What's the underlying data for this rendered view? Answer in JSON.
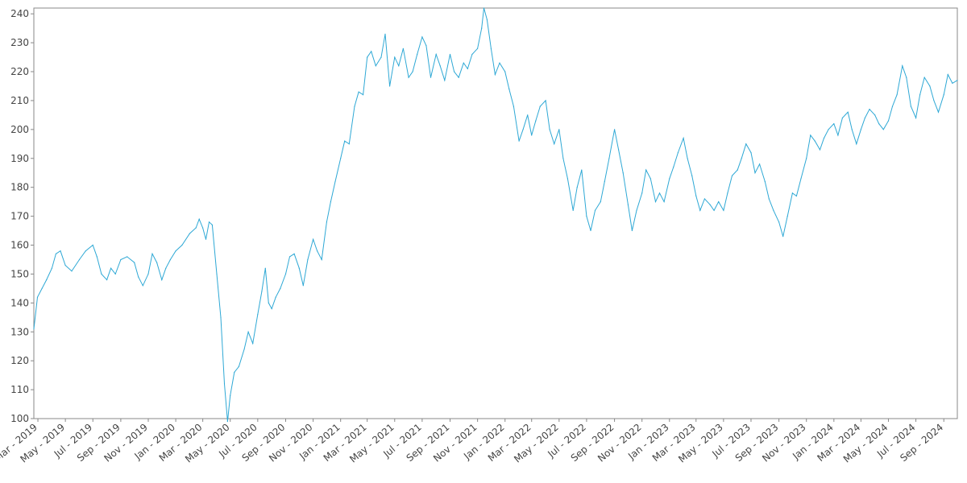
{
  "chart_data": {
    "type": "line",
    "title": "",
    "xlabel": "",
    "ylabel": "",
    "grid": false,
    "legend": "none",
    "colors": {
      "line": "#2ea8d5",
      "axis": "#888888",
      "text": "#444444"
    },
    "x_range": [
      "2019-02-20",
      "2024-10-01"
    ],
    "ylim": [
      100,
      242
    ],
    "y_ticks": [
      100,
      110,
      120,
      130,
      140,
      150,
      160,
      170,
      180,
      190,
      200,
      210,
      220,
      230,
      240
    ],
    "x_ticks": [
      {
        "date": "2019-03-01",
        "label": "Mar - 2019"
      },
      {
        "date": "2019-05-01",
        "label": "May - 2019"
      },
      {
        "date": "2019-07-01",
        "label": "Jul - 2019"
      },
      {
        "date": "2019-09-01",
        "label": "Sep - 2019"
      },
      {
        "date": "2019-11-01",
        "label": "Nov - 2019"
      },
      {
        "date": "2020-01-01",
        "label": "Jan - 2020"
      },
      {
        "date": "2020-03-01",
        "label": "Mar - 2020"
      },
      {
        "date": "2020-05-01",
        "label": "May - 2020"
      },
      {
        "date": "2020-07-01",
        "label": "Jul - 2020"
      },
      {
        "date": "2020-09-01",
        "label": "Sep - 2020"
      },
      {
        "date": "2020-11-01",
        "label": "Nov - 2020"
      },
      {
        "date": "2021-01-01",
        "label": "Jan - 2021"
      },
      {
        "date": "2021-03-01",
        "label": "Mar - 2021"
      },
      {
        "date": "2021-05-01",
        "label": "May - 2021"
      },
      {
        "date": "2021-07-01",
        "label": "Jul - 2021"
      },
      {
        "date": "2021-09-01",
        "label": "Sep - 2021"
      },
      {
        "date": "2021-11-01",
        "label": "Nov - 2021"
      },
      {
        "date": "2022-01-01",
        "label": "Jan - 2022"
      },
      {
        "date": "2022-03-01",
        "label": "Mar - 2022"
      },
      {
        "date": "2022-05-01",
        "label": "May - 2022"
      },
      {
        "date": "2022-07-01",
        "label": "Jul - 2022"
      },
      {
        "date": "2022-09-01",
        "label": "Sep - 2022"
      },
      {
        "date": "2022-11-01",
        "label": "Nov - 2022"
      },
      {
        "date": "2023-01-01",
        "label": "Jan - 2023"
      },
      {
        "date": "2023-03-01",
        "label": "Mar - 2023"
      },
      {
        "date": "2023-05-01",
        "label": "May - 2023"
      },
      {
        "date": "2023-07-01",
        "label": "Jul - 2023"
      },
      {
        "date": "2023-09-01",
        "label": "Sep - 2023"
      },
      {
        "date": "2023-11-01",
        "label": "Nov - 2023"
      },
      {
        "date": "2024-01-01",
        "label": "Jan - 2024"
      },
      {
        "date": "2024-03-01",
        "label": "Mar - 2024"
      },
      {
        "date": "2024-05-01",
        "label": "May - 2024"
      },
      {
        "date": "2024-07-01",
        "label": "Jul - 2024"
      },
      {
        "date": "2024-09-01",
        "label": "Sep - 2024"
      }
    ],
    "series": [
      {
        "points": [
          [
            "2019-02-20",
            131
          ],
          [
            "2019-02-28",
            142
          ],
          [
            "2019-03-10",
            145
          ],
          [
            "2019-03-20",
            148
          ],
          [
            "2019-04-01",
            152
          ],
          [
            "2019-04-10",
            157
          ],
          [
            "2019-04-20",
            158
          ],
          [
            "2019-05-01",
            153
          ],
          [
            "2019-05-15",
            151
          ],
          [
            "2019-06-01",
            155
          ],
          [
            "2019-06-15",
            158
          ],
          [
            "2019-07-01",
            160
          ],
          [
            "2019-07-10",
            156
          ],
          [
            "2019-07-20",
            150
          ],
          [
            "2019-08-01",
            148
          ],
          [
            "2019-08-10",
            152
          ],
          [
            "2019-08-20",
            150
          ],
          [
            "2019-09-01",
            155
          ],
          [
            "2019-09-15",
            156
          ],
          [
            "2019-10-01",
            154
          ],
          [
            "2019-10-10",
            149
          ],
          [
            "2019-10-20",
            146
          ],
          [
            "2019-11-01",
            150
          ],
          [
            "2019-11-10",
            157
          ],
          [
            "2019-11-20",
            154
          ],
          [
            "2019-12-01",
            148
          ],
          [
            "2019-12-10",
            152
          ],
          [
            "2019-12-20",
            155
          ],
          [
            "2020-01-01",
            158
          ],
          [
            "2020-01-15",
            160
          ],
          [
            "2020-02-01",
            164
          ],
          [
            "2020-02-15",
            166
          ],
          [
            "2020-02-22",
            169
          ],
          [
            "2020-03-01",
            166
          ],
          [
            "2020-03-08",
            162
          ],
          [
            "2020-03-15",
            168
          ],
          [
            "2020-03-22",
            167
          ],
          [
            "2020-04-01",
            150
          ],
          [
            "2020-04-10",
            135
          ],
          [
            "2020-04-18",
            112
          ],
          [
            "2020-04-25",
            99
          ],
          [
            "2020-05-01",
            108
          ],
          [
            "2020-05-10",
            116
          ],
          [
            "2020-05-20",
            118
          ],
          [
            "2020-06-01",
            124
          ],
          [
            "2020-06-10",
            130
          ],
          [
            "2020-06-20",
            126
          ],
          [
            "2020-07-01",
            136
          ],
          [
            "2020-07-10",
            144
          ],
          [
            "2020-07-18",
            152
          ],
          [
            "2020-07-25",
            140
          ],
          [
            "2020-08-01",
            138
          ],
          [
            "2020-08-10",
            142
          ],
          [
            "2020-08-20",
            145
          ],
          [
            "2020-09-01",
            150
          ],
          [
            "2020-09-10",
            156
          ],
          [
            "2020-09-20",
            157
          ],
          [
            "2020-10-01",
            152
          ],
          [
            "2020-10-10",
            146
          ],
          [
            "2020-10-20",
            155
          ],
          [
            "2020-11-01",
            162
          ],
          [
            "2020-11-10",
            158
          ],
          [
            "2020-11-20",
            155
          ],
          [
            "2020-12-01",
            168
          ],
          [
            "2020-12-10",
            175
          ],
          [
            "2020-12-20",
            182
          ],
          [
            "2021-01-01",
            190
          ],
          [
            "2021-01-10",
            196
          ],
          [
            "2021-01-20",
            195
          ],
          [
            "2021-02-01",
            208
          ],
          [
            "2021-02-10",
            213
          ],
          [
            "2021-02-20",
            212
          ],
          [
            "2021-03-01",
            225
          ],
          [
            "2021-03-10",
            227
          ],
          [
            "2021-03-20",
            222
          ],
          [
            "2021-04-01",
            225
          ],
          [
            "2021-04-10",
            233
          ],
          [
            "2021-04-20",
            215
          ],
          [
            "2021-05-01",
            225
          ],
          [
            "2021-05-10",
            222
          ],
          [
            "2021-05-20",
            228
          ],
          [
            "2021-06-01",
            218
          ],
          [
            "2021-06-10",
            220
          ],
          [
            "2021-06-20",
            226
          ],
          [
            "2021-07-01",
            232
          ],
          [
            "2021-07-10",
            229
          ],
          [
            "2021-07-20",
            218
          ],
          [
            "2021-08-01",
            226
          ],
          [
            "2021-08-10",
            222
          ],
          [
            "2021-08-20",
            217
          ],
          [
            "2021-09-01",
            226
          ],
          [
            "2021-09-10",
            220
          ],
          [
            "2021-09-20",
            218
          ],
          [
            "2021-10-01",
            223
          ],
          [
            "2021-10-10",
            221
          ],
          [
            "2021-10-20",
            226
          ],
          [
            "2021-11-01",
            228
          ],
          [
            "2021-11-10",
            235
          ],
          [
            "2021-11-15",
            242
          ],
          [
            "2021-11-22",
            238
          ],
          [
            "2021-12-01",
            228
          ],
          [
            "2021-12-10",
            219
          ],
          [
            "2021-12-20",
            223
          ],
          [
            "2022-01-01",
            220
          ],
          [
            "2022-01-10",
            214
          ],
          [
            "2022-01-20",
            208
          ],
          [
            "2022-02-01",
            196
          ],
          [
            "2022-02-10",
            200
          ],
          [
            "2022-02-20",
            205
          ],
          [
            "2022-03-01",
            198
          ],
          [
            "2022-03-10",
            203
          ],
          [
            "2022-03-20",
            208
          ],
          [
            "2022-04-01",
            210
          ],
          [
            "2022-04-10",
            200
          ],
          [
            "2022-04-20",
            195
          ],
          [
            "2022-05-01",
            200
          ],
          [
            "2022-05-10",
            190
          ],
          [
            "2022-05-20",
            183
          ],
          [
            "2022-06-01",
            172
          ],
          [
            "2022-06-10",
            180
          ],
          [
            "2022-06-20",
            186
          ],
          [
            "2022-07-01",
            170
          ],
          [
            "2022-07-10",
            165
          ],
          [
            "2022-07-20",
            172
          ],
          [
            "2022-08-01",
            175
          ],
          [
            "2022-08-10",
            182
          ],
          [
            "2022-08-20",
            190
          ],
          [
            "2022-09-01",
            200
          ],
          [
            "2022-09-10",
            193
          ],
          [
            "2022-09-20",
            185
          ],
          [
            "2022-10-01",
            174
          ],
          [
            "2022-10-10",
            165
          ],
          [
            "2022-10-20",
            172
          ],
          [
            "2022-11-01",
            178
          ],
          [
            "2022-11-10",
            186
          ],
          [
            "2022-11-20",
            183
          ],
          [
            "2022-12-01",
            175
          ],
          [
            "2022-12-10",
            178
          ],
          [
            "2022-12-20",
            175
          ],
          [
            "2023-01-01",
            183
          ],
          [
            "2023-01-10",
            187
          ],
          [
            "2023-01-20",
            192
          ],
          [
            "2023-02-01",
            197
          ],
          [
            "2023-02-10",
            190
          ],
          [
            "2023-02-20",
            184
          ],
          [
            "2023-03-01",
            177
          ],
          [
            "2023-03-10",
            172
          ],
          [
            "2023-03-20",
            176
          ],
          [
            "2023-04-01",
            174
          ],
          [
            "2023-04-10",
            172
          ],
          [
            "2023-04-20",
            175
          ],
          [
            "2023-05-01",
            172
          ],
          [
            "2023-05-10",
            178
          ],
          [
            "2023-05-20",
            184
          ],
          [
            "2023-06-01",
            186
          ],
          [
            "2023-06-10",
            190
          ],
          [
            "2023-06-20",
            195
          ],
          [
            "2023-07-01",
            192
          ],
          [
            "2023-07-10",
            185
          ],
          [
            "2023-07-20",
            188
          ],
          [
            "2023-08-01",
            182
          ],
          [
            "2023-08-10",
            176
          ],
          [
            "2023-08-20",
            172
          ],
          [
            "2023-09-01",
            168
          ],
          [
            "2023-09-10",
            163
          ],
          [
            "2023-09-20",
            170
          ],
          [
            "2023-10-01",
            178
          ],
          [
            "2023-10-10",
            177
          ],
          [
            "2023-10-20",
            183
          ],
          [
            "2023-11-01",
            190
          ],
          [
            "2023-11-10",
            198
          ],
          [
            "2023-11-20",
            196
          ],
          [
            "2023-12-01",
            193
          ],
          [
            "2023-12-10",
            197
          ],
          [
            "2023-12-20",
            200
          ],
          [
            "2024-01-01",
            202
          ],
          [
            "2024-01-10",
            198
          ],
          [
            "2024-01-20",
            204
          ],
          [
            "2024-02-01",
            206
          ],
          [
            "2024-02-10",
            200
          ],
          [
            "2024-02-20",
            195
          ],
          [
            "2024-03-01",
            200
          ],
          [
            "2024-03-10",
            204
          ],
          [
            "2024-03-20",
            207
          ],
          [
            "2024-04-01",
            205
          ],
          [
            "2024-04-10",
            202
          ],
          [
            "2024-04-20",
            200
          ],
          [
            "2024-05-01",
            203
          ],
          [
            "2024-05-10",
            208
          ],
          [
            "2024-05-20",
            212
          ],
          [
            "2024-06-01",
            222
          ],
          [
            "2024-06-10",
            218
          ],
          [
            "2024-06-20",
            208
          ],
          [
            "2024-07-01",
            204
          ],
          [
            "2024-07-10",
            212
          ],
          [
            "2024-07-20",
            218
          ],
          [
            "2024-08-01",
            215
          ],
          [
            "2024-08-10",
            210
          ],
          [
            "2024-08-20",
            206
          ],
          [
            "2024-09-01",
            212
          ],
          [
            "2024-09-10",
            219
          ],
          [
            "2024-09-20",
            216
          ],
          [
            "2024-10-01",
            217
          ]
        ]
      }
    ]
  }
}
